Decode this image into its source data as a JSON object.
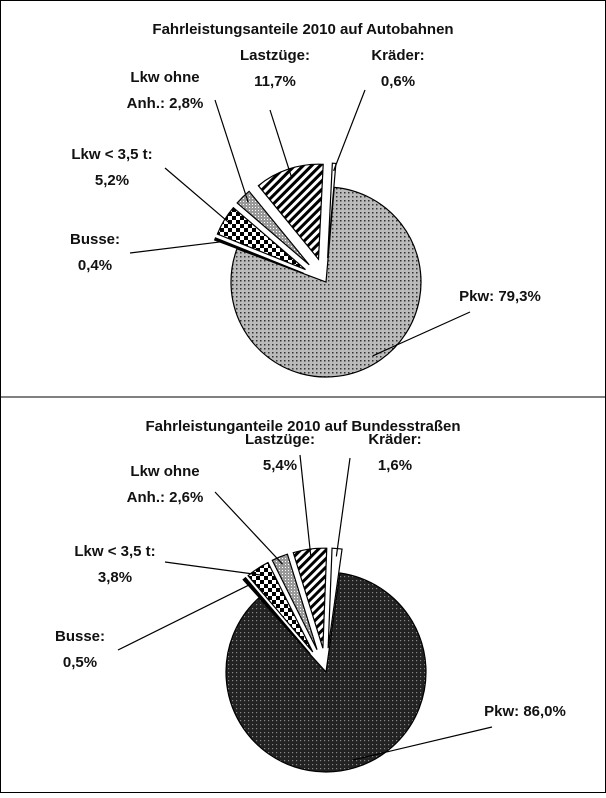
{
  "chart_data": [
    {
      "type": "pie",
      "title": "Fahrleistungsanteile 2010 auf Autobahnen",
      "categories": [
        "Pkw",
        "Busse",
        "Lkw < 3,5 t",
        "Lkw ohne Anh.",
        "Lastzüge",
        "Kräder"
      ],
      "values": [
        79.3,
        0.4,
        5.2,
        2.8,
        11.7,
        0.6
      ],
      "value_labels": [
        [
          "Pkw: 79,3%"
        ],
        [
          "Busse:",
          "0,4%"
        ],
        [
          "Lkw < 3,5 t:",
          "5,2%"
        ],
        [
          "Lkw ohne",
          "Anh.: 2,8%"
        ],
        [
          "Lastzüge:",
          "11,7%"
        ],
        [
          "Kräder:",
          "0,6%"
        ]
      ]
    },
    {
      "type": "pie",
      "title": "Fahrleistunganteile 2010 auf Bundesstraßen",
      "categories": [
        "Pkw",
        "Busse",
        "Lkw < 3,5 t",
        "Lkw ohne Anh.",
        "Lastzüge",
        "Kräder"
      ],
      "values": [
        86.0,
        0.5,
        3.8,
        2.6,
        5.4,
        1.6
      ],
      "value_labels": [
        [
          "Pkw: 86,0%"
        ],
        [
          "Busse:",
          "0,5%"
        ],
        [
          "Lkw < 3,5 t:",
          "3,8%"
        ],
        [
          "Lkw ohne",
          "Anh.: 2,6%"
        ],
        [
          "Lastzüge:",
          "5,4%"
        ],
        [
          "Kräder:",
          "1,6%"
        ]
      ]
    }
  ]
}
